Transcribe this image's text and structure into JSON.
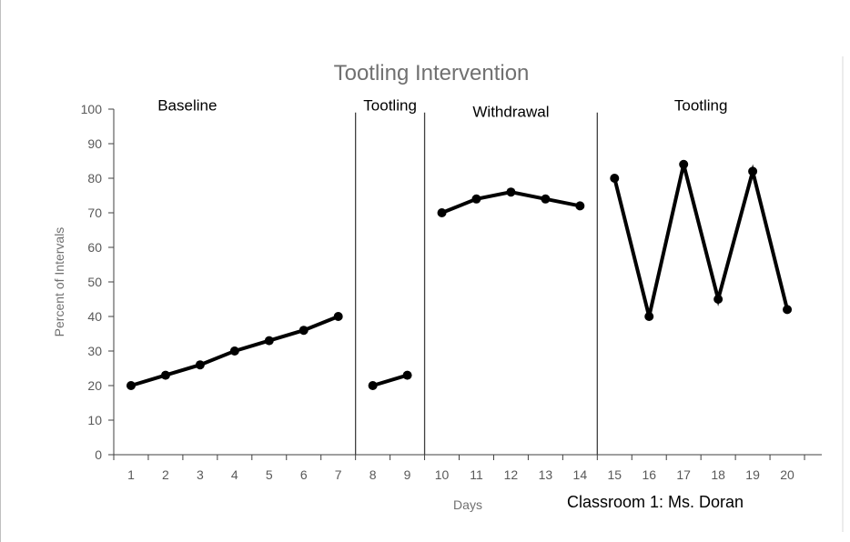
{
  "chart_data": {
    "type": "line",
    "title": "Tootling Intervention",
    "xlabel": "Days",
    "ylabel": "Percent of Intervals",
    "annotation": "Classroom 1: Ms. Doran",
    "xlim": [
      1,
      20
    ],
    "ylim": [
      0,
      100
    ],
    "yticks": [
      0,
      10,
      20,
      30,
      40,
      50,
      60,
      70,
      80,
      90,
      100
    ],
    "xticks": [
      1,
      2,
      3,
      4,
      5,
      6,
      7,
      8,
      9,
      10,
      11,
      12,
      13,
      14,
      15,
      16,
      17,
      18,
      19,
      20
    ],
    "grid": false,
    "legend": "none",
    "phase_change_after_day": [
      7.5,
      9.5,
      14.5
    ],
    "phases": [
      {
        "label": "Baseline",
        "days": [
          1,
          2,
          3,
          4,
          5,
          6,
          7
        ],
        "values": [
          20,
          23,
          26,
          30,
          33,
          36,
          40
        ]
      },
      {
        "label": "Tootling",
        "days": [
          8,
          9
        ],
        "values": [
          20,
          23
        ]
      },
      {
        "label": "Withdrawal",
        "days": [
          10,
          11,
          12,
          13,
          14
        ],
        "values": [
          70,
          74,
          76,
          74,
          72
        ]
      },
      {
        "label": "Tootling",
        "days": [
          15,
          16,
          17,
          18,
          19,
          20
        ],
        "values": [
          80,
          40,
          84,
          45,
          82,
          42
        ]
      }
    ],
    "colors": {
      "line": "#000000",
      "axis": "#404040",
      "title": "#707070"
    }
  }
}
